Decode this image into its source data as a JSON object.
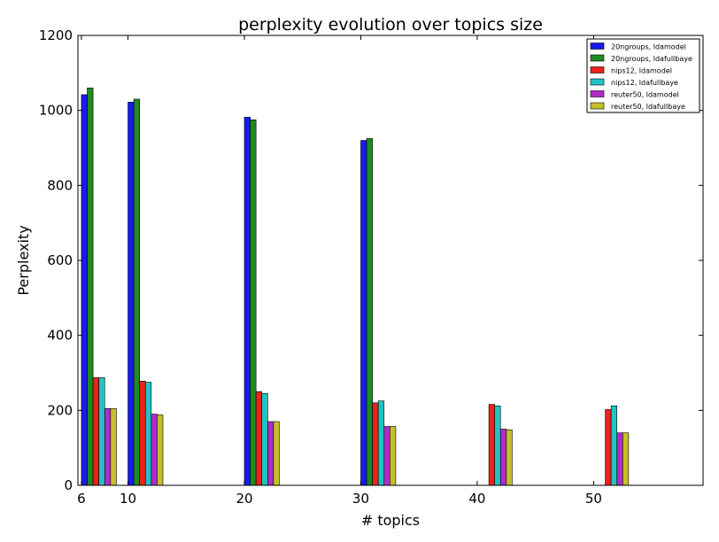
{
  "chart_data": {
    "type": "bar",
    "title": "perplexity evolution over topics size",
    "xlabel": "# topics",
    "ylabel": "Perplexity",
    "ylim": [
      0,
      1200
    ],
    "yticks": [
      0,
      200,
      400,
      600,
      800,
      1000,
      1200
    ],
    "xlim": [
      5.7,
      59.4
    ],
    "xticks": [
      6,
      10,
      20,
      30,
      40,
      50
    ],
    "bar_width": 0.5,
    "grid": false,
    "legend_position": "top-right",
    "categories": [
      6,
      10,
      20,
      30,
      40,
      50
    ],
    "series": [
      {
        "name": "20ngroups, ldamodel",
        "color": "#1a1aee",
        "offset": 0.0,
        "values": [
          1042,
          1022,
          982,
          920,
          null,
          null
        ]
      },
      {
        "name": "20ngroups, ldafullbaye",
        "color": "#1f8a1f",
        "offset": 0.5,
        "values": [
          1060,
          1030,
          975,
          925,
          null,
          null
        ]
      },
      {
        "name": "nips12, ldamodel",
        "color": "#e8241c",
        "offset": 1.0,
        "values": [
          287,
          278,
          250,
          220,
          216,
          202
        ]
      },
      {
        "name": "nips12, ldafullbaye",
        "color": "#22c3c3",
        "offset": 1.5,
        "values": [
          287,
          275,
          245,
          225,
          212,
          212
        ]
      },
      {
        "name": "reuter50, ldamodel",
        "color": "#b02cc8",
        "offset": 2.0,
        "values": [
          205,
          190,
          170,
          157,
          150,
          140
        ]
      },
      {
        "name": "reuter50, ldafullbaye",
        "color": "#c4c02a",
        "offset": 2.5,
        "values": [
          205,
          188,
          170,
          157,
          148,
          140
        ]
      }
    ]
  }
}
